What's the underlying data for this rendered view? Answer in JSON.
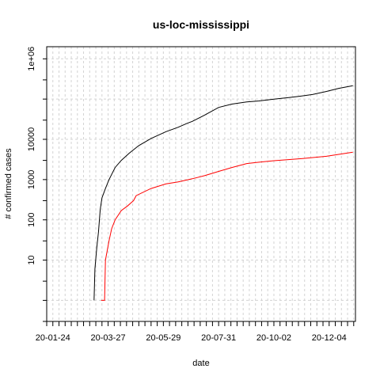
{
  "chart_data": {
    "type": "line",
    "title": "us-loc-mississippi",
    "xlabel": "date",
    "ylabel": "# confirmed cases",
    "y_scale": "log",
    "y_tick_labels": [
      "10",
      "100",
      "1000",
      "10000",
      "1e+06"
    ],
    "x_tick_labels": [
      "20-01-24",
      "20-03-27",
      "20-05-29",
      "20-07-31",
      "20-10-02",
      "20-12-04"
    ],
    "x_range": [
      "2020-01-17",
      "2021-01-03"
    ],
    "y_range": [
      0.3,
      2000000
    ],
    "grid": true,
    "series": [
      {
        "color": "#000000",
        "points": [
          [
            "2020-03-11",
            1
          ],
          [
            "2020-03-12",
            6
          ],
          [
            "2020-03-14",
            20
          ],
          [
            "2020-03-16",
            50
          ],
          [
            "2020-03-18",
            180
          ],
          [
            "2020-03-20",
            350
          ],
          [
            "2020-03-24",
            600
          ],
          [
            "2020-03-28",
            1000
          ],
          [
            "2020-04-04",
            2000
          ],
          [
            "2020-04-11",
            3000
          ],
          [
            "2020-04-20",
            4500
          ],
          [
            "2020-05-01",
            7000
          ],
          [
            "2020-05-15",
            10500
          ],
          [
            "2020-06-01",
            15500
          ],
          [
            "2020-06-15",
            20000
          ],
          [
            "2020-06-25",
            25000
          ],
          [
            "2020-07-01",
            28000
          ],
          [
            "2020-07-15",
            40000
          ],
          [
            "2020-07-31",
            62000
          ],
          [
            "2020-08-15",
            75000
          ],
          [
            "2020-09-01",
            85000
          ],
          [
            "2020-09-15",
            90000
          ],
          [
            "2020-10-02",
            100000
          ],
          [
            "2020-10-20",
            110000
          ],
          [
            "2020-11-01",
            118000
          ],
          [
            "2020-11-15",
            130000
          ],
          [
            "2020-12-01",
            155000
          ],
          [
            "2020-12-15",
            185000
          ],
          [
            "2020-12-31",
            215000
          ]
        ]
      },
      {
        "color": "#ff0000",
        "points": [
          [
            "2020-03-19",
            1
          ],
          [
            "2020-03-23",
            1
          ],
          [
            "2020-03-24",
            10
          ],
          [
            "2020-03-28",
            30
          ],
          [
            "2020-03-31",
            60
          ],
          [
            "2020-04-04",
            100
          ],
          [
            "2020-04-11",
            170
          ],
          [
            "2020-04-18",
            220
          ],
          [
            "2020-04-25",
            300
          ],
          [
            "2020-04-28",
            400
          ],
          [
            "2020-05-15",
            600
          ],
          [
            "2020-06-01",
            780
          ],
          [
            "2020-06-15",
            880
          ],
          [
            "2020-07-01",
            1050
          ],
          [
            "2020-07-15",
            1250
          ],
          [
            "2020-07-31",
            1600
          ],
          [
            "2020-08-15",
            2000
          ],
          [
            "2020-09-01",
            2500
          ],
          [
            "2020-09-15",
            2700
          ],
          [
            "2020-10-02",
            2950
          ],
          [
            "2020-11-01",
            3300
          ],
          [
            "2020-12-01",
            3800
          ],
          [
            "2020-12-31",
            4800
          ]
        ]
      }
    ]
  }
}
